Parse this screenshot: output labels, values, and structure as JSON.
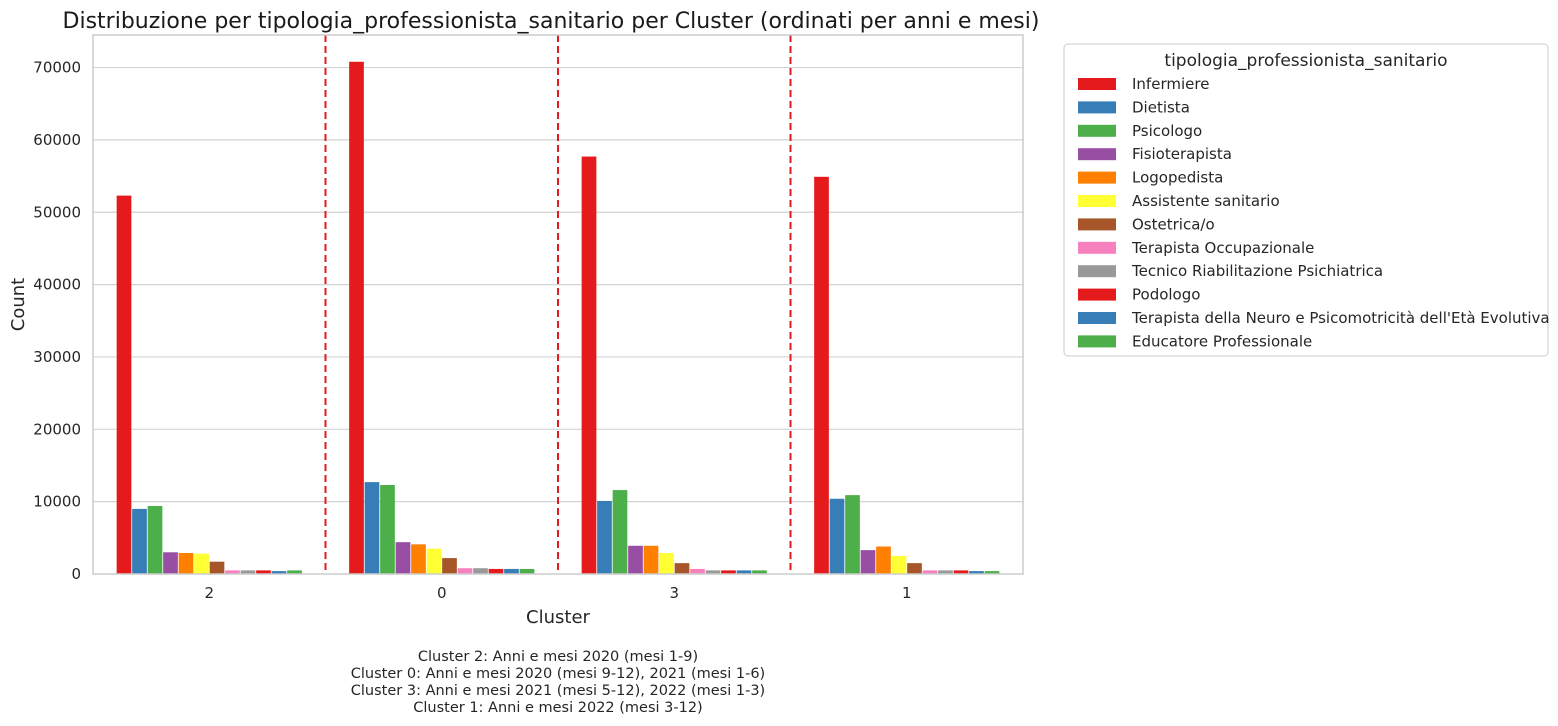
{
  "chart_data": {
    "type": "bar",
    "title": "Distribuzione per tipologia_professionista_sanitario per Cluster (ordinati per anni e mesi)",
    "xlabel": "Cluster",
    "ylabel": "Count",
    "categories": [
      "2",
      "0",
      "3",
      "1"
    ],
    "ylim": [
      0,
      74500
    ],
    "yticks": [
      0,
      10000,
      20000,
      30000,
      40000,
      50000,
      60000,
      70000
    ],
    "ytick_labels": [
      "0",
      "10000",
      "20000",
      "30000",
      "40000",
      "50000",
      "60000",
      "70000"
    ],
    "grid": "horizontal",
    "separators": {
      "style": "dashed",
      "color": "#e41a1c",
      "between_categories": true
    },
    "legend": {
      "title": "tipologia_professionista_sanitario",
      "placement": "outside-right"
    },
    "series": [
      {
        "name": "Infermiere",
        "color": "#e41a1c",
        "values": [
          52300,
          70800,
          57700,
          54900
        ]
      },
      {
        "name": "Dietista",
        "color": "#377eb8",
        "values": [
          9000,
          12700,
          10100,
          10400
        ]
      },
      {
        "name": "Psicologo",
        "color": "#4daf4a",
        "values": [
          9400,
          12300,
          11600,
          10900
        ]
      },
      {
        "name": "Fisioterapista",
        "color": "#984ea3",
        "values": [
          3000,
          4400,
          3900,
          3300
        ]
      },
      {
        "name": "Logopedista",
        "color": "#ff7f00",
        "values": [
          2900,
          4100,
          3900,
          3800
        ]
      },
      {
        "name": "Assistente sanitario",
        "color": "#ffff33",
        "values": [
          2800,
          3500,
          2900,
          2500
        ]
      },
      {
        "name": "Ostetrica/o",
        "color": "#a65628",
        "values": [
          1700,
          2200,
          1500,
          1500
        ]
      },
      {
        "name": "Terapista Occupazionale",
        "color": "#f781bf",
        "values": [
          500,
          800,
          700,
          500
        ]
      },
      {
        "name": "Tecnico Riabilitazione Psichiatrica",
        "color": "#999999",
        "values": [
          500,
          800,
          500,
          500
        ]
      },
      {
        "name": "Podologo",
        "color": "#e41a1c",
        "values": [
          500,
          700,
          500,
          500
        ]
      },
      {
        "name": "Terapista della Neuro e Psicomotricità dell'Età Evolutiva",
        "color": "#377eb8",
        "values": [
          400,
          700,
          500,
          400
        ]
      },
      {
        "name": "Educatore Professionale",
        "color": "#4daf4a",
        "values": [
          500,
          700,
          500,
          400
        ]
      }
    ],
    "caption_lines": [
      "Cluster 2: Anni e mesi 2020 (mesi 1-9)",
      "Cluster 0: Anni e mesi 2020 (mesi 9-12), 2021 (mesi 1-6)",
      "Cluster 3: Anni e mesi 2021 (mesi 5-12), 2022 (mesi 1-3)",
      "Cluster 1: Anni e mesi 2022 (mesi 3-12)"
    ]
  }
}
